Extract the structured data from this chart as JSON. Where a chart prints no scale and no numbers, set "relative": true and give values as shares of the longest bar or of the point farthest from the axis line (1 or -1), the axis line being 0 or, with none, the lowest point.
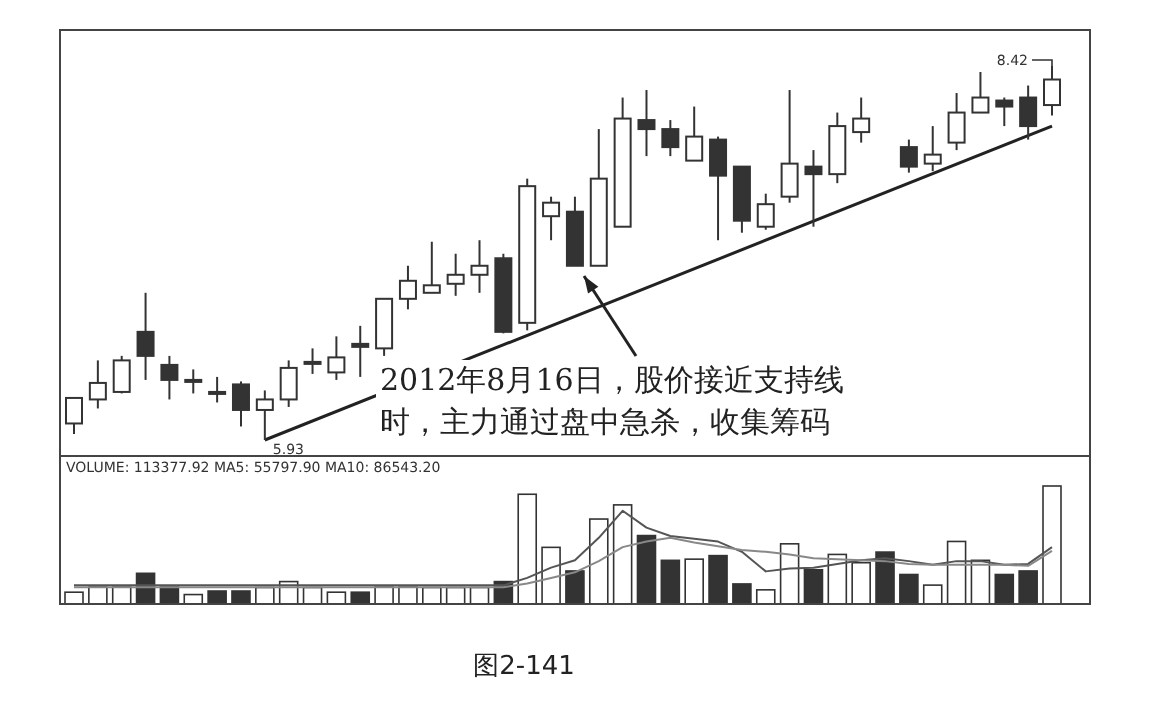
{
  "chart_data": [
    {
      "type": "candlestick",
      "categories": [
        null,
        null,
        null,
        null,
        null,
        null,
        null,
        null,
        null,
        null,
        null,
        null,
        null,
        null,
        null,
        null,
        null,
        null,
        null,
        null,
        null,
        null,
        null,
        null,
        null,
        null,
        null,
        null,
        null,
        null,
        null,
        null,
        null,
        null,
        null,
        null,
        null,
        null,
        null,
        null,
        null,
        null
      ],
      "ohlc": [
        [
          6.04,
          6.21,
          5.97,
          6.21
        ],
        [
          6.2,
          6.46,
          6.14,
          6.31
        ],
        [
          6.25,
          6.49,
          6.24,
          6.46
        ],
        [
          6.65,
          6.91,
          6.33,
          6.49
        ],
        [
          6.43,
          6.49,
          6.2,
          6.33
        ],
        [
          6.32,
          6.4,
          6.24,
          6.33
        ],
        [
          6.25,
          6.35,
          6.18,
          6.24
        ],
        [
          6.3,
          6.32,
          6.02,
          6.13
        ],
        [
          6.13,
          6.26,
          5.93,
          6.2
        ],
        [
          6.2,
          6.46,
          6.15,
          6.41
        ],
        [
          6.44,
          6.54,
          6.37,
          6.45
        ],
        [
          6.38,
          6.62,
          6.33,
          6.48
        ],
        [
          6.57,
          6.69,
          6.35,
          6.55
        ],
        [
          6.54,
          6.87,
          6.49,
          6.87
        ],
        [
          6.87,
          7.09,
          6.8,
          6.99
        ],
        [
          6.91,
          7.25,
          6.91,
          6.96
        ],
        [
          6.97,
          7.17,
          6.89,
          7.03
        ],
        [
          7.03,
          7.26,
          6.91,
          7.09
        ],
        [
          7.14,
          7.17,
          6.64,
          6.65
        ],
        [
          6.71,
          7.67,
          6.66,
          7.62
        ],
        [
          7.42,
          7.55,
          7.26,
          7.51
        ],
        [
          7.45,
          7.55,
          7.09,
          7.09
        ],
        [
          7.09,
          8.0,
          7.09,
          7.67
        ],
        [
          7.35,
          8.21,
          7.35,
          8.07
        ],
        [
          8.06,
          8.26,
          7.82,
          8.0
        ],
        [
          8.0,
          8.06,
          7.82,
          7.88
        ],
        [
          7.79,
          8.15,
          7.79,
          7.95
        ],
        [
          7.93,
          7.95,
          7.26,
          7.69
        ],
        [
          7.75,
          7.75,
          7.31,
          7.39
        ],
        [
          7.35,
          7.57,
          7.33,
          7.5
        ],
        [
          7.55,
          8.26,
          7.51,
          7.77
        ],
        [
          7.75,
          7.86,
          7.35,
          7.7
        ],
        [
          7.7,
          8.11,
          7.64,
          8.02
        ],
        [
          7.98,
          8.21,
          7.91,
          8.07
        ],
        null,
        [
          7.88,
          7.93,
          7.71,
          7.75
        ],
        [
          7.77,
          8.02,
          7.72,
          7.83
        ],
        [
          7.91,
          8.24,
          7.86,
          8.11
        ],
        [
          8.11,
          8.38,
          8.11,
          8.21
        ],
        [
          8.19,
          8.21,
          8.02,
          8.15
        ],
        [
          8.21,
          8.29,
          7.93,
          8.02
        ],
        [
          8.16,
          8.42,
          8.09,
          8.33
        ]
      ],
      "series": [
        {
          "type": "line",
          "values": [
            null,
            null,
            null,
            null,
            null,
            null,
            null,
            null,
            5.93,
            null,
            null,
            null,
            null,
            null,
            null,
            null,
            null,
            null,
            null,
            null,
            null,
            null,
            null,
            null,
            null,
            null,
            null,
            null,
            null,
            null,
            null,
            null,
            null,
            null,
            null,
            null,
            null,
            null,
            null,
            null,
            null,
            8.02
          ],
          "color": "#222222"
        }
      ],
      "annotations": [
        "2012年8月16日，股价接近支持线时，主力通过盘中急杀，收集筹码",
        "8.42",
        "5.93",
        "图2-141"
      ]
    },
    {
      "type": "bar",
      "relative": true,
      "title": "VOLUME: 113377.92 MA5: 55797.90 MA10: 86543.20",
      "categories": [
        null,
        null,
        null,
        null,
        null,
        null,
        null,
        null,
        null,
        null,
        null,
        null,
        null,
        null,
        null,
        null,
        null,
        null,
        null,
        null,
        null,
        null,
        null,
        null,
        null,
        null,
        null,
        null,
        null,
        null,
        null,
        null,
        null,
        null,
        null,
        null,
        null,
        null,
        null,
        null,
        null,
        null
      ],
      "values": [
        0.1,
        0.15,
        0.15,
        0.26,
        0.15,
        0.08,
        0.11,
        0.11,
        0.14,
        0.19,
        0.14,
        0.1,
        0.1,
        0.15,
        0.15,
        0.14,
        0.14,
        0.14,
        0.19,
        0.93,
        0.48,
        0.28,
        0.72,
        0.84,
        0.58,
        0.37,
        0.38,
        0.41,
        0.17,
        0.12,
        0.51,
        0.29,
        0.42,
        0.35,
        0.44,
        0.25,
        0.16,
        0.53,
        0.37,
        0.25,
        0.28,
        1
      ],
      "colors": [
        "#ffffff",
        "#ffffff",
        "#ffffff",
        "#333333",
        "#333333",
        "#ffffff",
        "#333333",
        "#333333",
        "#ffffff",
        "#ffffff",
        "#ffffff",
        "#ffffff",
        "#333333",
        "#ffffff",
        "#ffffff",
        "#ffffff",
        "#ffffff",
        "#ffffff",
        "#333333",
        "#ffffff",
        "#ffffff",
        "#333333",
        "#ffffff",
        "#ffffff",
        "#333333",
        "#333333",
        "#ffffff",
        "#333333",
        "#333333",
        "#ffffff",
        "#ffffff",
        "#333333",
        "#ffffff",
        "#ffffff",
        "#333333",
        "#333333",
        "#ffffff",
        "#ffffff",
        "#ffffff",
        "#333333",
        "#333333",
        "#ffffff"
      ]
    },
    {
      "type": "line",
      "relative": true,
      "categories": [
        null,
        null,
        null,
        null,
        null,
        null,
        null,
        null,
        null,
        null,
        null,
        null,
        null,
        null,
        null,
        null,
        null,
        null,
        null,
        null,
        null,
        null,
        null,
        null,
        null,
        null,
        null,
        null,
        null,
        null,
        null,
        null,
        null,
        null,
        null,
        null,
        null,
        null,
        null,
        null,
        null,
        null
      ],
      "series": [
        {
          "color": "#555555",
          "values": [
            0.2,
            0.2,
            0.2,
            0.2,
            0.2,
            0.2,
            0.2,
            0.2,
            0.2,
            0.2,
            0.2,
            0.2,
            0.2,
            0.2,
            0.2,
            0.2,
            0.2,
            0.2,
            0.2,
            0.28,
            0.39,
            0.47,
            0.71,
            1,
            0.82,
            0.73,
            0.7,
            0.67,
            0.56,
            0.35,
            0.38,
            0.39,
            0.43,
            0.47,
            0.49,
            0.46,
            0.42,
            0.46,
            0.46,
            0.42,
            0.43,
            0.61
          ]
        },
        {
          "color": "#888888",
          "values": [
            0.18,
            0.18,
            0.18,
            0.18,
            0.18,
            0.18,
            0.18,
            0.18,
            0.18,
            0.18,
            0.18,
            0.18,
            0.18,
            0.18,
            0.18,
            0.18,
            0.18,
            0.18,
            0.18,
            0.22,
            0.28,
            0.34,
            0.46,
            0.61,
            0.67,
            0.71,
            0.66,
            0.62,
            0.58,
            0.56,
            0.53,
            0.49,
            0.48,
            0.47,
            0.46,
            0.43,
            0.42,
            0.42,
            0.42,
            0.42,
            0.41,
            0.57
          ]
        }
      ]
    }
  ]
}
